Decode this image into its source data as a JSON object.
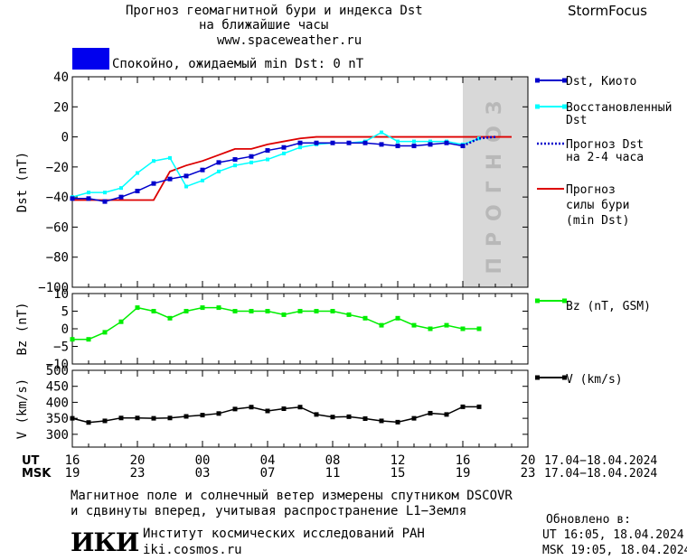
{
  "header": {
    "title_line1": "Прогноз геомагнитной бури и индекса Dst",
    "title_line2": "на ближайшие часы",
    "url": "www.spaceweather.ru",
    "brand": "StormFocus",
    "status_text": "Спокойно, ожидаемый min Dst: 0 nT",
    "status_color": "#0000ee"
  },
  "colors": {
    "dst_kyoto": "#0000cc",
    "dst_restored": "#00ffff",
    "forecast_dst": "#0000cc",
    "storm_forecast": "#dd0000",
    "bz": "#00ee00",
    "v": "#000000",
    "forecast_band": "#d8d8d8",
    "forecast_band_text": "#b8b8b8"
  },
  "forecast_band_label": "ПРОГНОЗ",
  "legend": {
    "dst_kyoto": "Dst, Киото",
    "restored": [
      "Восстановленный",
      "Dst"
    ],
    "forecast_dst": [
      "Прогноз Dst",
      "на 2-4 часа"
    ],
    "storm": [
      "Прогноз",
      "силы бури",
      "(min Dst)"
    ],
    "bz": "Bz (nT, GSM)",
    "v": "V (km/s)"
  },
  "axes": {
    "dst_label": "Dst (nT)",
    "bz_label": "Bz (nT)",
    "v_label": "V (km/s)",
    "dst_ticks": [
      "40",
      "20",
      "0",
      "−20",
      "−40",
      "−60",
      "−80",
      "−100"
    ],
    "bz_ticks": [
      "10",
      "5",
      "0",
      "−5",
      "−10"
    ],
    "v_ticks": [
      "500",
      "450",
      "400",
      "350",
      "300"
    ],
    "ut_label": "UT",
    "msk_label": "MSK",
    "ut_ticks": [
      "16",
      "20",
      "00",
      "04",
      "08",
      "12",
      "16",
      "20"
    ],
    "msk_ticks": [
      "19",
      "23",
      "03",
      "07",
      "11",
      "15",
      "19",
      "23"
    ],
    "date_range": "17.04−18.04.2024"
  },
  "chart_data": {
    "type": "line",
    "x_unit": "hours since 16 UT, 17.04.2024",
    "xlim": [
      0,
      28
    ],
    "forecast_region": [
      24,
      28
    ],
    "panels": [
      {
        "name": "Dst",
        "ylabel": "Dst (nT)",
        "ylim": [
          -100,
          40
        ],
        "series": [
          {
            "name": "Dst, Киото",
            "x": [
              0,
              1,
              2,
              3,
              4,
              5,
              6,
              7,
              8,
              9,
              10,
              11,
              12,
              13,
              14,
              15,
              16,
              17,
              18,
              19,
              20,
              21,
              22,
              23,
              24
            ],
            "values": [
              -41,
              -41,
              -43,
              -40,
              -36,
              -31,
              -28,
              -26,
              -22,
              -17,
              -15,
              -13,
              -9,
              -7,
              -4,
              -4,
              -4,
              -4,
              -4,
              -5,
              -6,
              -6,
              -5,
              -4,
              -6
            ]
          },
          {
            "name": "Восстановленный Dst",
            "x": [
              0,
              1,
              2,
              3,
              4,
              5,
              6,
              7,
              8,
              9,
              10,
              11,
              12,
              13,
              14,
              15,
              16,
              17,
              18,
              19,
              20,
              21,
              22,
              23,
              24,
              25
            ],
            "values": [
              -40,
              -37,
              -37,
              -34,
              -24,
              -16,
              -14,
              -33,
              -29,
              -23,
              -19,
              -17,
              -15,
              -11,
              -7,
              -5,
              -4,
              -4,
              -3,
              3,
              -3,
              -3,
              -3,
              -3,
              -5,
              -1
            ]
          },
          {
            "name": "Прогноз Dst на 2-4 часа",
            "x": [
              24,
              25,
              26
            ],
            "values": [
              -6,
              -1,
              0
            ]
          },
          {
            "name": "Прогноз силы бури (min Dst)",
            "x": [
              0,
              1,
              2,
              3,
              4,
              5,
              6,
              7,
              8,
              9,
              10,
              11,
              12,
              13,
              14,
              15,
              16,
              17,
              18,
              19,
              20,
              21,
              22,
              23,
              24,
              25,
              26,
              27
            ],
            "values": [
              -42,
              -42,
              -42,
              -42,
              -42,
              -42,
              -23,
              -19,
              -16,
              -12,
              -8,
              -8,
              -5,
              -3,
              -1,
              0,
              0,
              0,
              0,
              0,
              0,
              0,
              0,
              0,
              0,
              0,
              0,
              0
            ]
          }
        ]
      },
      {
        "name": "Bz",
        "ylabel": "Bz (nT)",
        "ylim": [
          -10,
          10
        ],
        "series": [
          {
            "name": "Bz (nT, GSM)",
            "x": [
              0,
              1,
              2,
              3,
              4,
              5,
              6,
              7,
              8,
              9,
              10,
              11,
              12,
              13,
              14,
              15,
              16,
              17,
              18,
              19,
              20,
              21,
              22,
              23,
              24,
              25
            ],
            "values": [
              -3,
              -3,
              -1,
              2,
              6,
              5,
              3,
              5,
              6,
              6,
              5,
              5,
              5,
              4,
              5,
              5,
              5,
              4,
              3,
              1,
              3,
              1,
              0,
              1,
              0,
              0
            ]
          }
        ]
      },
      {
        "name": "V",
        "ylabel": "V (km/s)",
        "ylim": [
          280,
          520
        ],
        "series": [
          {
            "name": "V (km/s)",
            "x": [
              0,
              1,
              2,
              3,
              4,
              5,
              6,
              7,
              8,
              9,
              10,
              11,
              12,
              13,
              14,
              15,
              16,
              17,
              18,
              19,
              20,
              21,
              22,
              23,
              24,
              25
            ],
            "values": [
              370,
              357,
              362,
              371,
              371,
              370,
              371,
              376,
              380,
              385,
              399,
              405,
              393,
              400,
              405,
              382,
              374,
              375,
              369,
              362,
              358,
              370,
              386,
              382,
              406,
              406
            ]
          }
        ]
      }
    ]
  },
  "footer": {
    "note_line1": "Магнитное поле и солнечный ветер измерены спутником DSCOVR",
    "note_line2": "и сдвинуты вперед, учитывая распространение L1−Земля",
    "logo_text": "ИКИ",
    "institute": "Институт космических исследований РАН",
    "institute_url": "iki.cosmos.ru",
    "updated_label": "Обновлено в:",
    "updated_ut": "UT   16:05, 18.04.2024",
    "updated_msk": "MSK 19:05, 18.04.2024"
  }
}
